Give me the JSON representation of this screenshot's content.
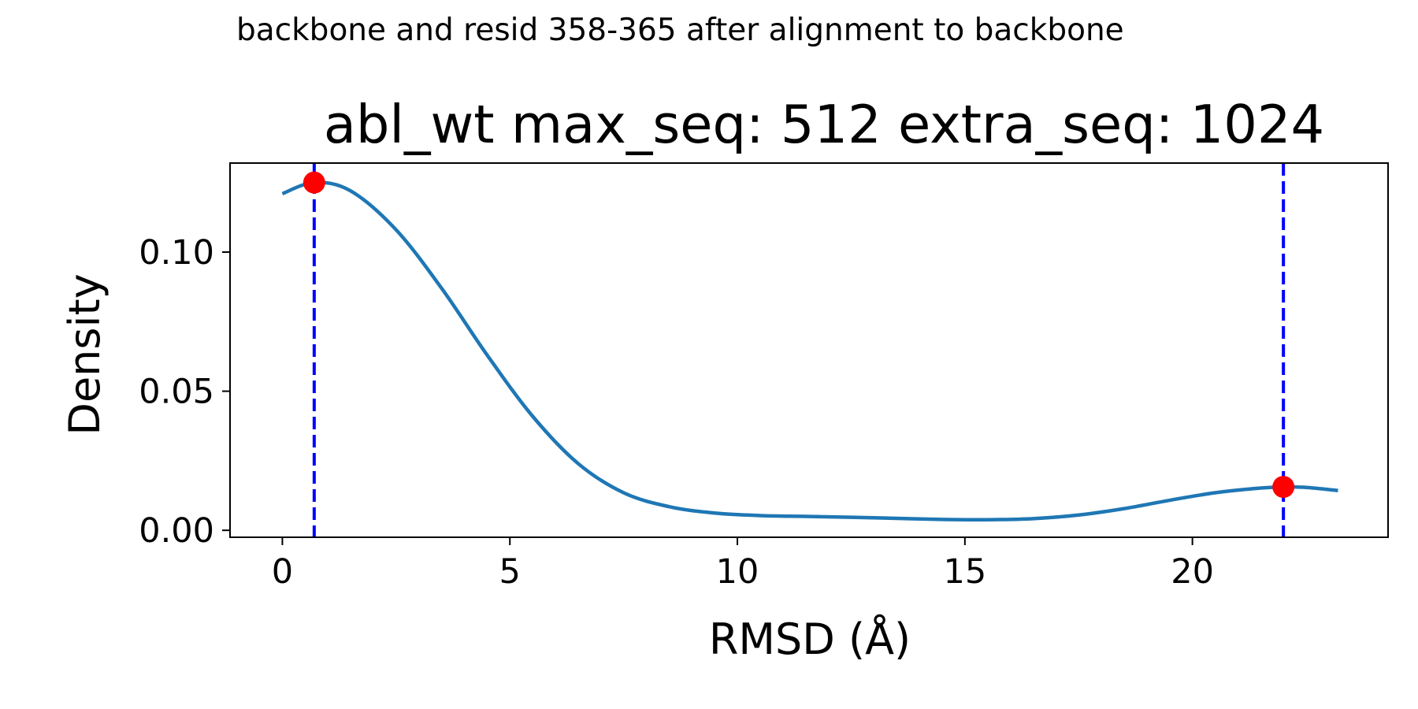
{
  "suptitle": "backbone and resid 358-365 after alignment to backbone",
  "chart_data": {
    "type": "line",
    "title": "abl_wt max_seq: 512 extra_seq: 1024",
    "xlabel": "RMSD (Å)",
    "ylabel": "Density",
    "xlim": [
      -1.15,
      24.3
    ],
    "ylim": [
      -0.0025,
      0.132
    ],
    "xticks": [
      0,
      5,
      10,
      15,
      20
    ],
    "xtick_labels": [
      "0",
      "5",
      "10",
      "15",
      "20"
    ],
    "yticks": [
      0.0,
      0.05,
      0.1
    ],
    "ytick_labels": [
      "0.00",
      "0.05",
      "0.10"
    ],
    "grid": false,
    "series": [
      {
        "color": "#1f77b4",
        "x": [
          0.0,
          0.7,
          1.5,
          2.5,
          3.5,
          4.5,
          5.5,
          6.5,
          7.5,
          8.5,
          9.5,
          10.5,
          11.5,
          12.5,
          13.5,
          14.5,
          15.5,
          16.5,
          17.5,
          18.5,
          19.5,
          20.5,
          21.5,
          22.0,
          22.5,
          23.2
        ],
        "y": [
          0.121,
          0.125,
          0.122,
          0.108,
          0.087,
          0.063,
          0.041,
          0.024,
          0.0135,
          0.0085,
          0.0062,
          0.0053,
          0.005,
          0.0047,
          0.0043,
          0.0039,
          0.0038,
          0.0042,
          0.0055,
          0.0078,
          0.0108,
          0.0135,
          0.0152,
          0.0156,
          0.0154,
          0.0143
        ]
      }
    ],
    "peaks": {
      "color": "#ff0000",
      "x": [
        0.7,
        22.0
      ],
      "y": [
        0.125,
        0.0156
      ]
    },
    "vlines": {
      "color": "#0000ff",
      "style": "dashed",
      "x": [
        0.7,
        22.0
      ]
    }
  }
}
